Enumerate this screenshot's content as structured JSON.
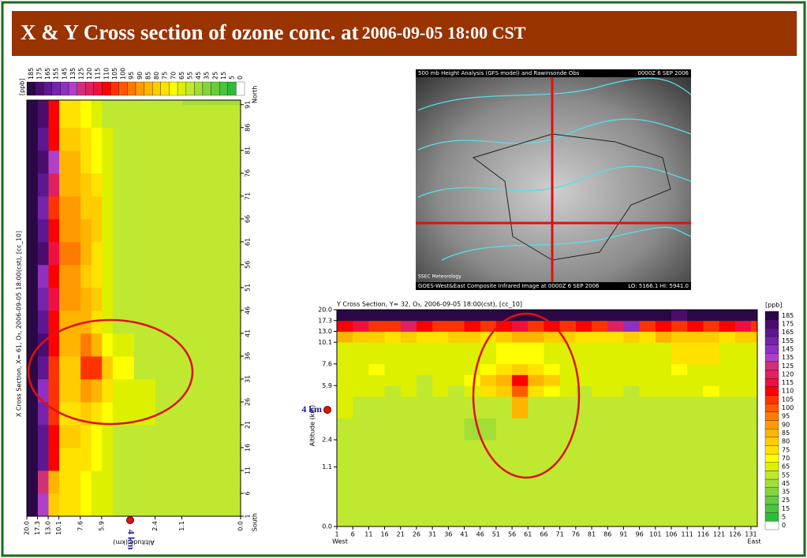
{
  "slide_title": {
    "main": "X & Y Cross section of ozone conc. at",
    "date": "2006-09-05 18:00 CST"
  },
  "annotation": "4 km",
  "map_image": {
    "top_left": "500 mb Height Analysis (GFS model) and Rawinsonde Obs",
    "top_right": "0000Z 6 SEP 2006",
    "credit": "SSEC Meteorology",
    "bottom_left": "GOES-West&East Composite Infrared Image at 0000Z 6 SEP 2006",
    "bottom_right": "LO: 5166.1  HI: 5941.0"
  },
  "colorbar": {
    "label": "[ppb]",
    "levels": [
      185,
      175,
      165,
      155,
      145,
      135,
      125,
      120,
      115,
      110,
      105,
      100,
      95,
      90,
      85,
      80,
      75,
      70,
      65,
      55,
      45,
      35,
      25,
      15,
      5,
      0
    ],
    "colors": [
      "#2a0845",
      "#4a0d6e",
      "#5e1790",
      "#7722aa",
      "#9030c0",
      "#b040c8",
      "#d0307a",
      "#e02060",
      "#f01040",
      "#ff0000",
      "#ff3300",
      "#ff5a00",
      "#ff7a00",
      "#ff9a00",
      "#ffb400",
      "#ffcc00",
      "#ffe200",
      "#ffff00",
      "#ddf000",
      "#bfe830",
      "#a2de36",
      "#84d43c",
      "#66cc3c",
      "#48c43e",
      "#2cbc3a",
      "#ffffff"
    ]
  },
  "chart_data": [
    {
      "type": "heatmap",
      "title": "X Cross Section, X= 61, O₃, 2006-09-05 18:00(cst), [cc_10]",
      "layer_label": "Altitude (km)",
      "layer_axis": "x",
      "layer_lim": [
        0,
        20
      ],
      "layer_ticks": [
        {
          "value": 0,
          "label": "0.0"
        },
        {
          "value": 5.5,
          "label": "1.1"
        },
        {
          "value": 8,
          "label": "2.4"
        },
        {
          "value": 13,
          "label": "5.9"
        },
        {
          "value": 15,
          "label": "7.6"
        },
        {
          "value": 17,
          "label": "10.1"
        },
        {
          "value": 18,
          "label": "13.0"
        },
        {
          "value": 19,
          "label": "17.3"
        },
        {
          "value": 20,
          "label": "20.0"
        }
      ],
      "layer_edges": [
        0,
        5.5,
        8,
        10,
        12,
        13,
        14,
        15,
        17,
        18,
        19,
        20
      ],
      "grid_lim": [
        1,
        92
      ],
      "grid_ticks": [
        1,
        6,
        11,
        16,
        21,
        26,
        31,
        36,
        41,
        46,
        51,
        56,
        61,
        66,
        71,
        76,
        81,
        86,
        91
      ],
      "grid_edges": [
        1,
        6,
        11,
        16,
        21,
        26,
        31,
        36,
        41,
        46,
        51,
        56,
        61,
        66,
        71,
        76,
        81,
        86,
        91,
        92
      ],
      "grid_end_labels": [
        "South",
        "North"
      ],
      "values": [
        [
          60,
          60,
          60,
          60,
          60,
          60,
          60,
          60,
          60,
          60,
          60,
          60,
          60,
          60,
          60,
          60,
          55,
          55,
          50
        ],
        [
          60,
          60,
          60,
          60,
          60,
          60,
          60,
          60,
          60,
          60,
          60,
          60,
          60,
          60,
          60,
          60,
          60,
          60,
          55
        ],
        [
          60,
          60,
          60,
          60,
          65,
          65,
          60,
          60,
          60,
          60,
          60,
          60,
          60,
          60,
          60,
          60,
          60,
          60,
          60
        ],
        [
          60,
          60,
          60,
          60,
          65,
          65,
          70,
          65,
          60,
          60,
          60,
          60,
          60,
          60,
          60,
          60,
          60,
          60,
          60
        ],
        [
          65,
          65,
          65,
          65,
          70,
          75,
          80,
          70,
          65,
          65,
          65,
          65,
          65,
          65,
          65,
          65,
          65,
          60,
          60
        ],
        [
          65,
          65,
          70,
          70,
          75,
          85,
          105,
          85,
          75,
          80,
          75,
          75,
          80,
          80,
          75,
          70,
          70,
          65,
          65
        ],
        [
          70,
          70,
          75,
          75,
          80,
          90,
          105,
          95,
          85,
          85,
          80,
          85,
          85,
          80,
          80,
          75,
          75,
          70,
          70
        ],
        [
          75,
          75,
          75,
          80,
          75,
          80,
          80,
          85,
          85,
          90,
          90,
          95,
          90,
          90,
          85,
          85,
          80,
          75,
          75
        ],
        [
          80,
          85,
          110,
          110,
          105,
          105,
          105,
          110,
          110,
          115,
          110,
          115,
          110,
          105,
          120,
          140,
          110,
          110,
          110
        ],
        [
          135,
          125,
          165,
          165,
          155,
          145,
          165,
          175,
          165,
          155,
          145,
          175,
          165,
          155,
          165,
          175,
          165,
          175,
          175
        ],
        [
          185,
          185,
          185,
          185,
          185,
          185,
          185,
          185,
          185,
          185,
          185,
          185,
          185,
          185,
          185,
          185,
          185,
          185,
          185
        ]
      ]
    },
    {
      "type": "heatmap",
      "title": "Y Cross Section, Y= 32, O₃, 2006-09-05 18:00(cst), [cc_10]",
      "layer_label": "Altitude (km)",
      "layer_axis": "y",
      "layer_lim": [
        0,
        20
      ],
      "layer_ticks": [
        {
          "value": 0,
          "label": "0.0"
        },
        {
          "value": 5.5,
          "label": "1.1"
        },
        {
          "value": 8,
          "label": "2.4"
        },
        {
          "value": 13,
          "label": "5.9"
        },
        {
          "value": 15,
          "label": "7.6"
        },
        {
          "value": 17,
          "label": "10.1"
        },
        {
          "value": 18,
          "label": "13.0"
        },
        {
          "value": 19,
          "label": "17.3"
        },
        {
          "value": 20,
          "label": "20.0"
        }
      ],
      "layer_edges": [
        0,
        5.5,
        8,
        10,
        12,
        13,
        14,
        15,
        17,
        18,
        19,
        20
      ],
      "grid_lim": [
        1,
        133
      ],
      "grid_ticks": [
        1,
        6,
        11,
        16,
        21,
        26,
        31,
        36,
        41,
        46,
        51,
        56,
        61,
        66,
        71,
        76,
        81,
        86,
        91,
        96,
        101,
        106,
        111,
        116,
        121,
        126,
        131
      ],
      "grid_edges": [
        1,
        6,
        11,
        16,
        21,
        26,
        31,
        36,
        41,
        46,
        51,
        56,
        61,
        66,
        71,
        76,
        81,
        86,
        91,
        96,
        101,
        106,
        111,
        116,
        121,
        126,
        131,
        133
      ],
      "grid_end_labels": [
        "West",
        "East"
      ],
      "values": [
        [
          60,
          60,
          55,
          60,
          60,
          55,
          60,
          60,
          55,
          55,
          60,
          60,
          60,
          55,
          60,
          60,
          60,
          55,
          60,
          60,
          60,
          60,
          55,
          60,
          60,
          60,
          60
        ],
        [
          60,
          55,
          60,
          60,
          55,
          55,
          60,
          55,
          55,
          55,
          55,
          60,
          55,
          55,
          60,
          60,
          55,
          55,
          60,
          60,
          55,
          60,
          60,
          60,
          55,
          60,
          60
        ],
        [
          60,
          60,
          60,
          55,
          55,
          55,
          55,
          55,
          45,
          45,
          55,
          55,
          55,
          55,
          55,
          55,
          55,
          55,
          55,
          60,
          55,
          55,
          55,
          60,
          55,
          55,
          60
        ],
        [
          65,
          60,
          60,
          60,
          60,
          60,
          55,
          55,
          55,
          55,
          55,
          85,
          60,
          60,
          55,
          60,
          60,
          60,
          60,
          60,
          60,
          60,
          60,
          60,
          60,
          60,
          60
        ],
        [
          65,
          65,
          65,
          60,
          65,
          60,
          65,
          60,
          65,
          75,
          80,
          100,
          75,
          70,
          65,
          60,
          65,
          65,
          60,
          65,
          65,
          65,
          65,
          70,
          65,
          65,
          65
        ],
        [
          65,
          65,
          65,
          65,
          65,
          60,
          65,
          65,
          70,
          80,
          85,
          110,
          85,
          80,
          65,
          65,
          65,
          65,
          65,
          65,
          65,
          65,
          65,
          65,
          65,
          65,
          65
        ],
        [
          65,
          65,
          70,
          65,
          65,
          65,
          65,
          65,
          65,
          70,
          75,
          80,
          75,
          70,
          65,
          65,
          65,
          65,
          65,
          65,
          65,
          70,
          65,
          65,
          65,
          65,
          65
        ],
        [
          65,
          65,
          65,
          65,
          65,
          65,
          65,
          65,
          65,
          65,
          70,
          70,
          70,
          65,
          65,
          65,
          65,
          65,
          65,
          65,
          65,
          75,
          75,
          75,
          65,
          65,
          65
        ],
        [
          85,
          80,
          80,
          75,
          80,
          75,
          75,
          80,
          80,
          75,
          80,
          85,
          85,
          80,
          80,
          75,
          75,
          75,
          80,
          75,
          85,
          80,
          80,
          80,
          75,
          80,
          80
        ],
        [
          110,
          115,
          105,
          105,
          120,
          110,
          105,
          105,
          110,
          105,
          110,
          115,
          105,
          110,
          105,
          110,
          105,
          120,
          150,
          105,
          110,
          105,
          110,
          105,
          110,
          115,
          105
        ],
        [
          185,
          185,
          185,
          185,
          185,
          185,
          185,
          185,
          185,
          185,
          185,
          185,
          185,
          185,
          185,
          185,
          185,
          185,
          185,
          185,
          185,
          175,
          185,
          185,
          185,
          185,
          185
        ]
      ]
    }
  ]
}
